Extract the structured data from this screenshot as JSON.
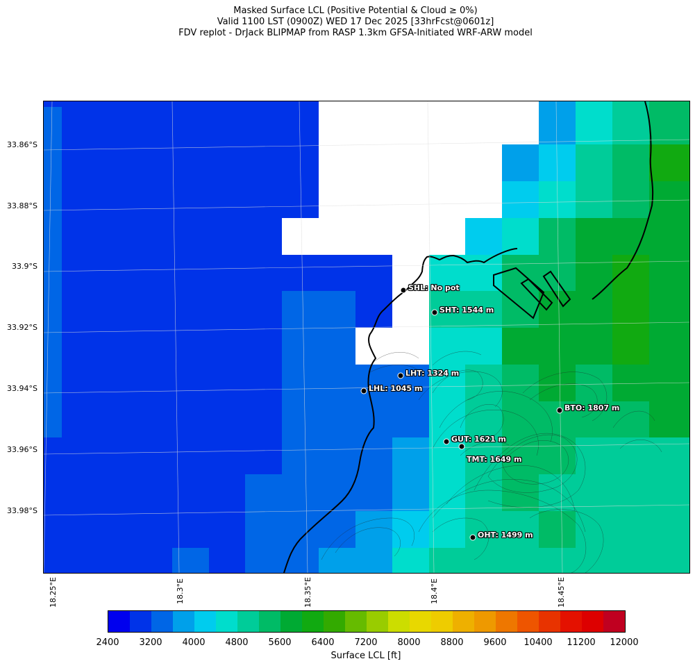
{
  "title": {
    "line1": "Masked Surface LCL (Positive Potential & Cloud ≥ 0%)",
    "line2": "Valid 1100 LST (0900Z) WED 17 Dec 2025 [33hrFcst@0601z]",
    "line3": "FDV replot - DrJack BLIPMAP from RASP 1.3km GFSA-Initiated WRF-ARW model"
  },
  "latitude_labels": [
    "33.86°S",
    "33.88°S",
    "33.9°S",
    "33.92°S",
    "33.94°S",
    "33.96°S",
    "33.98°S"
  ],
  "longitude_labels": [
    "18.25°E",
    "18.3°E",
    "18.35°E",
    "18.4°E",
    "18.45°E"
  ],
  "stations": [
    {
      "code": "SHL",
      "label": "SHL: No pot"
    },
    {
      "code": "SHT",
      "label": "SHT: 1544 m"
    },
    {
      "code": "LHT",
      "label": "LHT: 1324 m"
    },
    {
      "code": "LHL",
      "label": "LHL: 1045 m"
    },
    {
      "code": "BTO",
      "label": "BTO: 1807 m"
    },
    {
      "code": "GUT",
      "label": "GUT: 1621 m"
    },
    {
      "code": "TMT",
      "label": "TMT: 1649 m"
    },
    {
      "code": "OHT",
      "label": "OHT: 1499 m"
    }
  ],
  "colorbar": {
    "label": "Surface LCL [ft]",
    "tick_labels": [
      "2400",
      "3200",
      "4000",
      "4800",
      "5600",
      "6400",
      "7200",
      "8000",
      "8800",
      "9600",
      "10400",
      "11200",
      "12000"
    ],
    "colors": [
      "#0000ee",
      "#0033e8",
      "#0066e6",
      "#00a0ea",
      "#00ccee",
      "#00ddcc",
      "#00cc99",
      "#00bb66",
      "#00aa33",
      "#11aa11",
      "#33aa00",
      "#66bb00",
      "#99cc00",
      "#ccdd00",
      "#e8d800",
      "#eecc00",
      "#eeb000",
      "#ee9900",
      "#ee7700",
      "#ee5500",
      "#e83300",
      "#e41100",
      "#dd0000",
      "#c00020"
    ]
  }
}
